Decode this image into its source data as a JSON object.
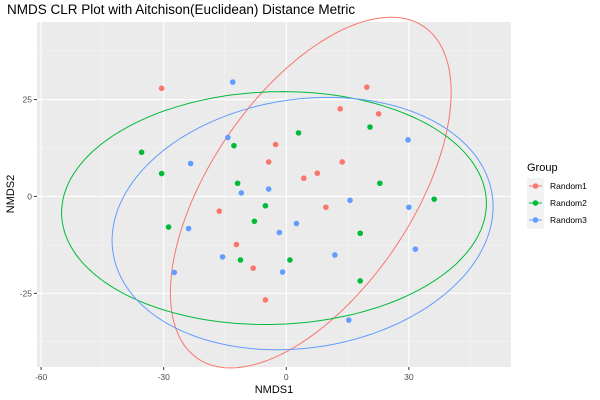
{
  "chart_data": {
    "type": "scatter",
    "title": "NMDS CLR Plot with Aitchison(Euclidean) Distance Metric",
    "xlabel": "NMDS1",
    "ylabel": "NMDS2",
    "xlim": [
      -61,
      55
    ],
    "ylim": [
      -44,
      45
    ],
    "xticks": [
      -60,
      -30,
      0,
      30
    ],
    "yticks": [
      -25,
      0,
      25
    ],
    "grid": true,
    "legend": {
      "title": "Group",
      "position": "right"
    },
    "series": [
      {
        "name": "Random1",
        "color": "#F8766D",
        "points": [
          [
            -30.5,
            27.9
          ],
          [
            19.7,
            28.2
          ],
          [
            13.2,
            22.6
          ],
          [
            22.6,
            21.3
          ],
          [
            -2.6,
            13.4
          ],
          [
            13.7,
            8.9
          ],
          [
            -4.3,
            8.9
          ],
          [
            7.6,
            6.0
          ],
          [
            4.3,
            4.7
          ],
          [
            -16.4,
            -3.8
          ],
          [
            9.7,
            -2.8
          ],
          [
            -12.2,
            -12.4
          ],
          [
            -8.1,
            -18.5
          ],
          [
            -5.1,
            -26.7
          ]
        ]
      },
      {
        "name": "Random2",
        "color": "#00BA38",
        "points": [
          [
            -35.4,
            11.4
          ],
          [
            -12.8,
            13.1
          ],
          [
            3.0,
            16.4
          ],
          [
            20.5,
            17.9
          ],
          [
            -30.5,
            5.9
          ],
          [
            -11.9,
            3.4
          ],
          [
            22.9,
            3.4
          ],
          [
            36.2,
            -0.7
          ],
          [
            -5.1,
            -2.4
          ],
          [
            -28.8,
            -7.9
          ],
          [
            -7.8,
            -6.4
          ],
          [
            18.1,
            -9.5
          ],
          [
            -11.2,
            -16.4
          ],
          [
            0.9,
            -16.4
          ],
          [
            18.1,
            -21.8
          ]
        ]
      },
      {
        "name": "Random3",
        "color": "#619CFF",
        "points": [
          [
            -13.1,
            29.5
          ],
          [
            -14.3,
            15.2
          ],
          [
            29.8,
            14.6
          ],
          [
            -23.4,
            8.5
          ],
          [
            -4.3,
            1.9
          ],
          [
            -11.0,
            0.9
          ],
          [
            15.6,
            -1.0
          ],
          [
            30.0,
            -2.8
          ],
          [
            2.5,
            -7.0
          ],
          [
            -23.9,
            -8.3
          ],
          [
            -1.7,
            -9.3
          ],
          [
            31.6,
            -13.6
          ],
          [
            11.9,
            -15.1
          ],
          [
            -15.6,
            -15.6
          ],
          [
            -27.4,
            -19.6
          ],
          [
            -0.9,
            -19.5
          ],
          [
            15.3,
            -31.9
          ]
        ]
      }
    ],
    "ellipses": [
      {
        "group": "Random1",
        "color": "#F8766D",
        "cx": 6,
        "cy": 1,
        "a": 51,
        "b": 25,
        "angle_deg": 58
      },
      {
        "group": "Random2",
        "color": "#00BA38",
        "cx": -3,
        "cy": -3,
        "a": 52,
        "b": 30,
        "angle_deg": 2
      },
      {
        "group": "Random3",
        "color": "#619CFF",
        "cx": 4,
        "cy": -7,
        "a": 47,
        "b": 32,
        "angle_deg": 10
      }
    ]
  }
}
